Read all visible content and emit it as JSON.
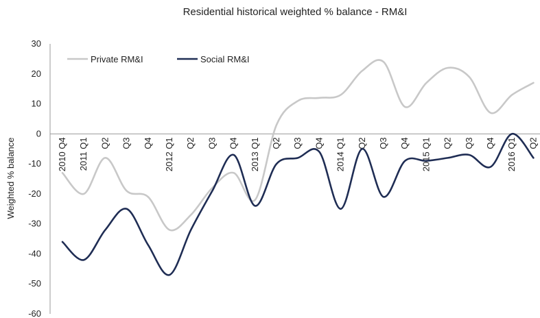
{
  "chart_data": {
    "type": "line",
    "title": "Residential historical weighted % balance - RM&I",
    "xlabel": "",
    "ylabel": "Weighted % balance",
    "ylim": [
      -60,
      30
    ],
    "yticks": [
      30,
      20,
      10,
      0,
      -10,
      -20,
      -30,
      -40,
      -50,
      -60
    ],
    "grid": false,
    "legend": "top-left",
    "categories": [
      "2010 Q4",
      "2011 Q1",
      "Q2",
      "Q3",
      "Q4",
      "2012 Q1",
      "Q2",
      "Q3",
      "Q4",
      "2013 Q1",
      "Q2",
      "Q3",
      "Q4",
      "2014 Q1",
      "Q2",
      "Q3",
      "Q4",
      "2015 Q1",
      "Q2",
      "Q3",
      "Q4",
      "2016 Q1",
      "Q2"
    ],
    "series": [
      {
        "name": "Private RM&I",
        "color": "#c8c8c8",
        "values": [
          -13,
          -20,
          -8,
          -19,
          -21,
          -32,
          -27,
          -18,
          -13,
          -22,
          3,
          11,
          12,
          13,
          21,
          24,
          9,
          17,
          22,
          19,
          7,
          13,
          17
        ]
      },
      {
        "name": "Social RM&I",
        "color": "#1f2d54",
        "values": [
          -36,
          -42,
          -32,
          -25,
          -37,
          -47,
          -32,
          -19,
          -7,
          -24,
          -10,
          -8,
          -6,
          -25,
          -5,
          -21,
          -9,
          -9,
          -8,
          -7,
          -11,
          0,
          -8
        ]
      }
    ]
  }
}
